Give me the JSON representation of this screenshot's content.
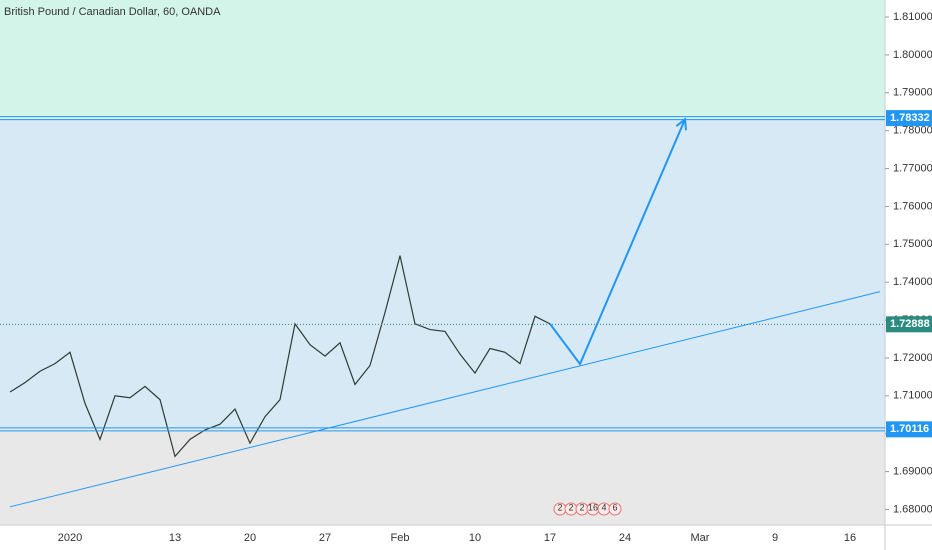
{
  "chart_data": {
    "type": "line",
    "title": "British Pound / Canadian Dollar, 60, OANDA",
    "categories": [
      null,
      null,
      null,
      null,
      "2020",
      null,
      null,
      null,
      null,
      null,
      null,
      "13",
      null,
      null,
      null,
      null,
      "20",
      null,
      null,
      null,
      null,
      "27",
      null,
      null,
      null,
      null,
      "Feb",
      null,
      null,
      null,
      null,
      "10",
      null,
      null,
      null,
      null,
      "17",
      null,
      null,
      null,
      null,
      "24",
      null,
      null,
      null,
      null,
      "Mar",
      null,
      null,
      null,
      null,
      "9",
      null,
      null,
      null,
      null,
      "16",
      null,
      null
    ],
    "series": [
      {
        "color": "#2e3b36",
        "values": [
          1.711,
          1.7135,
          1.7165,
          1.7185,
          1.7215,
          1.708,
          1.6985,
          1.71,
          1.7095,
          1.7125,
          1.709,
          1.694,
          1.6985,
          1.701,
          1.7025,
          1.7065,
          1.6975,
          1.7045,
          1.709,
          1.729,
          1.7235,
          1.7205,
          1.724,
          1.713,
          1.718,
          1.732,
          1.747,
          1.729,
          1.7275,
          1.727,
          1.721,
          1.716,
          1.7225,
          1.7215,
          1.7185,
          1.731,
          1.729,
          null,
          null,
          null,
          null,
          null,
          null,
          null,
          null,
          null,
          null,
          null,
          null,
          null,
          null,
          null,
          null,
          null,
          null,
          null,
          null,
          null,
          null
        ]
      },
      {
        "color": "#2196f3",
        "values": [
          null,
          null,
          null,
          null,
          null,
          null,
          null,
          null,
          null,
          null,
          null,
          null,
          null,
          null,
          null,
          null,
          null,
          null,
          null,
          null,
          null,
          null,
          null,
          null,
          null,
          null,
          null,
          null,
          null,
          null,
          null,
          null,
          null,
          null,
          null,
          null,
          1.729,
          null,
          1.7184,
          null,
          null,
          null,
          null,
          null,
          null,
          1.783,
          null,
          null,
          null,
          null,
          null,
          null,
          null,
          null,
          null,
          null,
          null,
          null,
          null
        ]
      },
      {
        "color": "#2196f3",
        "values": [
          1.6807,
          null,
          null,
          null,
          null,
          null,
          null,
          null,
          null,
          null,
          null,
          null,
          null,
          null,
          null,
          null,
          null,
          null,
          null,
          null,
          null,
          null,
          null,
          null,
          null,
          null,
          null,
          null,
          null,
          null,
          null,
          null,
          null,
          null,
          null,
          null,
          null,
          null,
          null,
          null,
          null,
          null,
          null,
          null,
          null,
          null,
          null,
          null,
          null,
          null,
          null,
          null,
          null,
          null,
          null,
          null,
          null,
          null,
          1.7375
        ]
      }
    ],
    "levels": [
      {
        "value": 1.78332,
        "color": "#2196f3",
        "style": "solid"
      },
      {
        "value": 1.72888,
        "color": "#2a8c80",
        "style": "dotted"
      },
      {
        "value": 1.70116,
        "color": "#2196f3",
        "style": "solid"
      }
    ],
    "zone_colors": [
      "#d3f4e8",
      "#d6e9f5",
      "#e8e8e8"
    ],
    "ylim": [
      1.6759,
      1.8145
    ],
    "yticks": [
      {
        "value": 1.68,
        "label": "1.68000"
      },
      {
        "value": 1.69,
        "label": "1.69000"
      },
      {
        "value": 1.7,
        "label": "1.70000"
      },
      {
        "value": 1.71,
        "label": "1.71000"
      },
      {
        "value": 1.72,
        "label": "1.72000"
      },
      {
        "value": 1.73,
        "label": "1.73000"
      },
      {
        "value": 1.74,
        "label": "1.74000"
      },
      {
        "value": 1.75,
        "label": "1.75000"
      },
      {
        "value": 1.76,
        "label": "1.76000"
      },
      {
        "value": 1.77,
        "label": "1.77000"
      },
      {
        "value": 1.78,
        "label": "1.78000"
      },
      {
        "value": 1.79,
        "label": "1.79000"
      },
      {
        "value": 1.8,
        "label": "1.80000"
      },
      {
        "value": 1.81,
        "label": "1.81000"
      }
    ],
    "events": [
      "2",
      "2",
      "2",
      "16",
      "4",
      "6"
    ]
  }
}
